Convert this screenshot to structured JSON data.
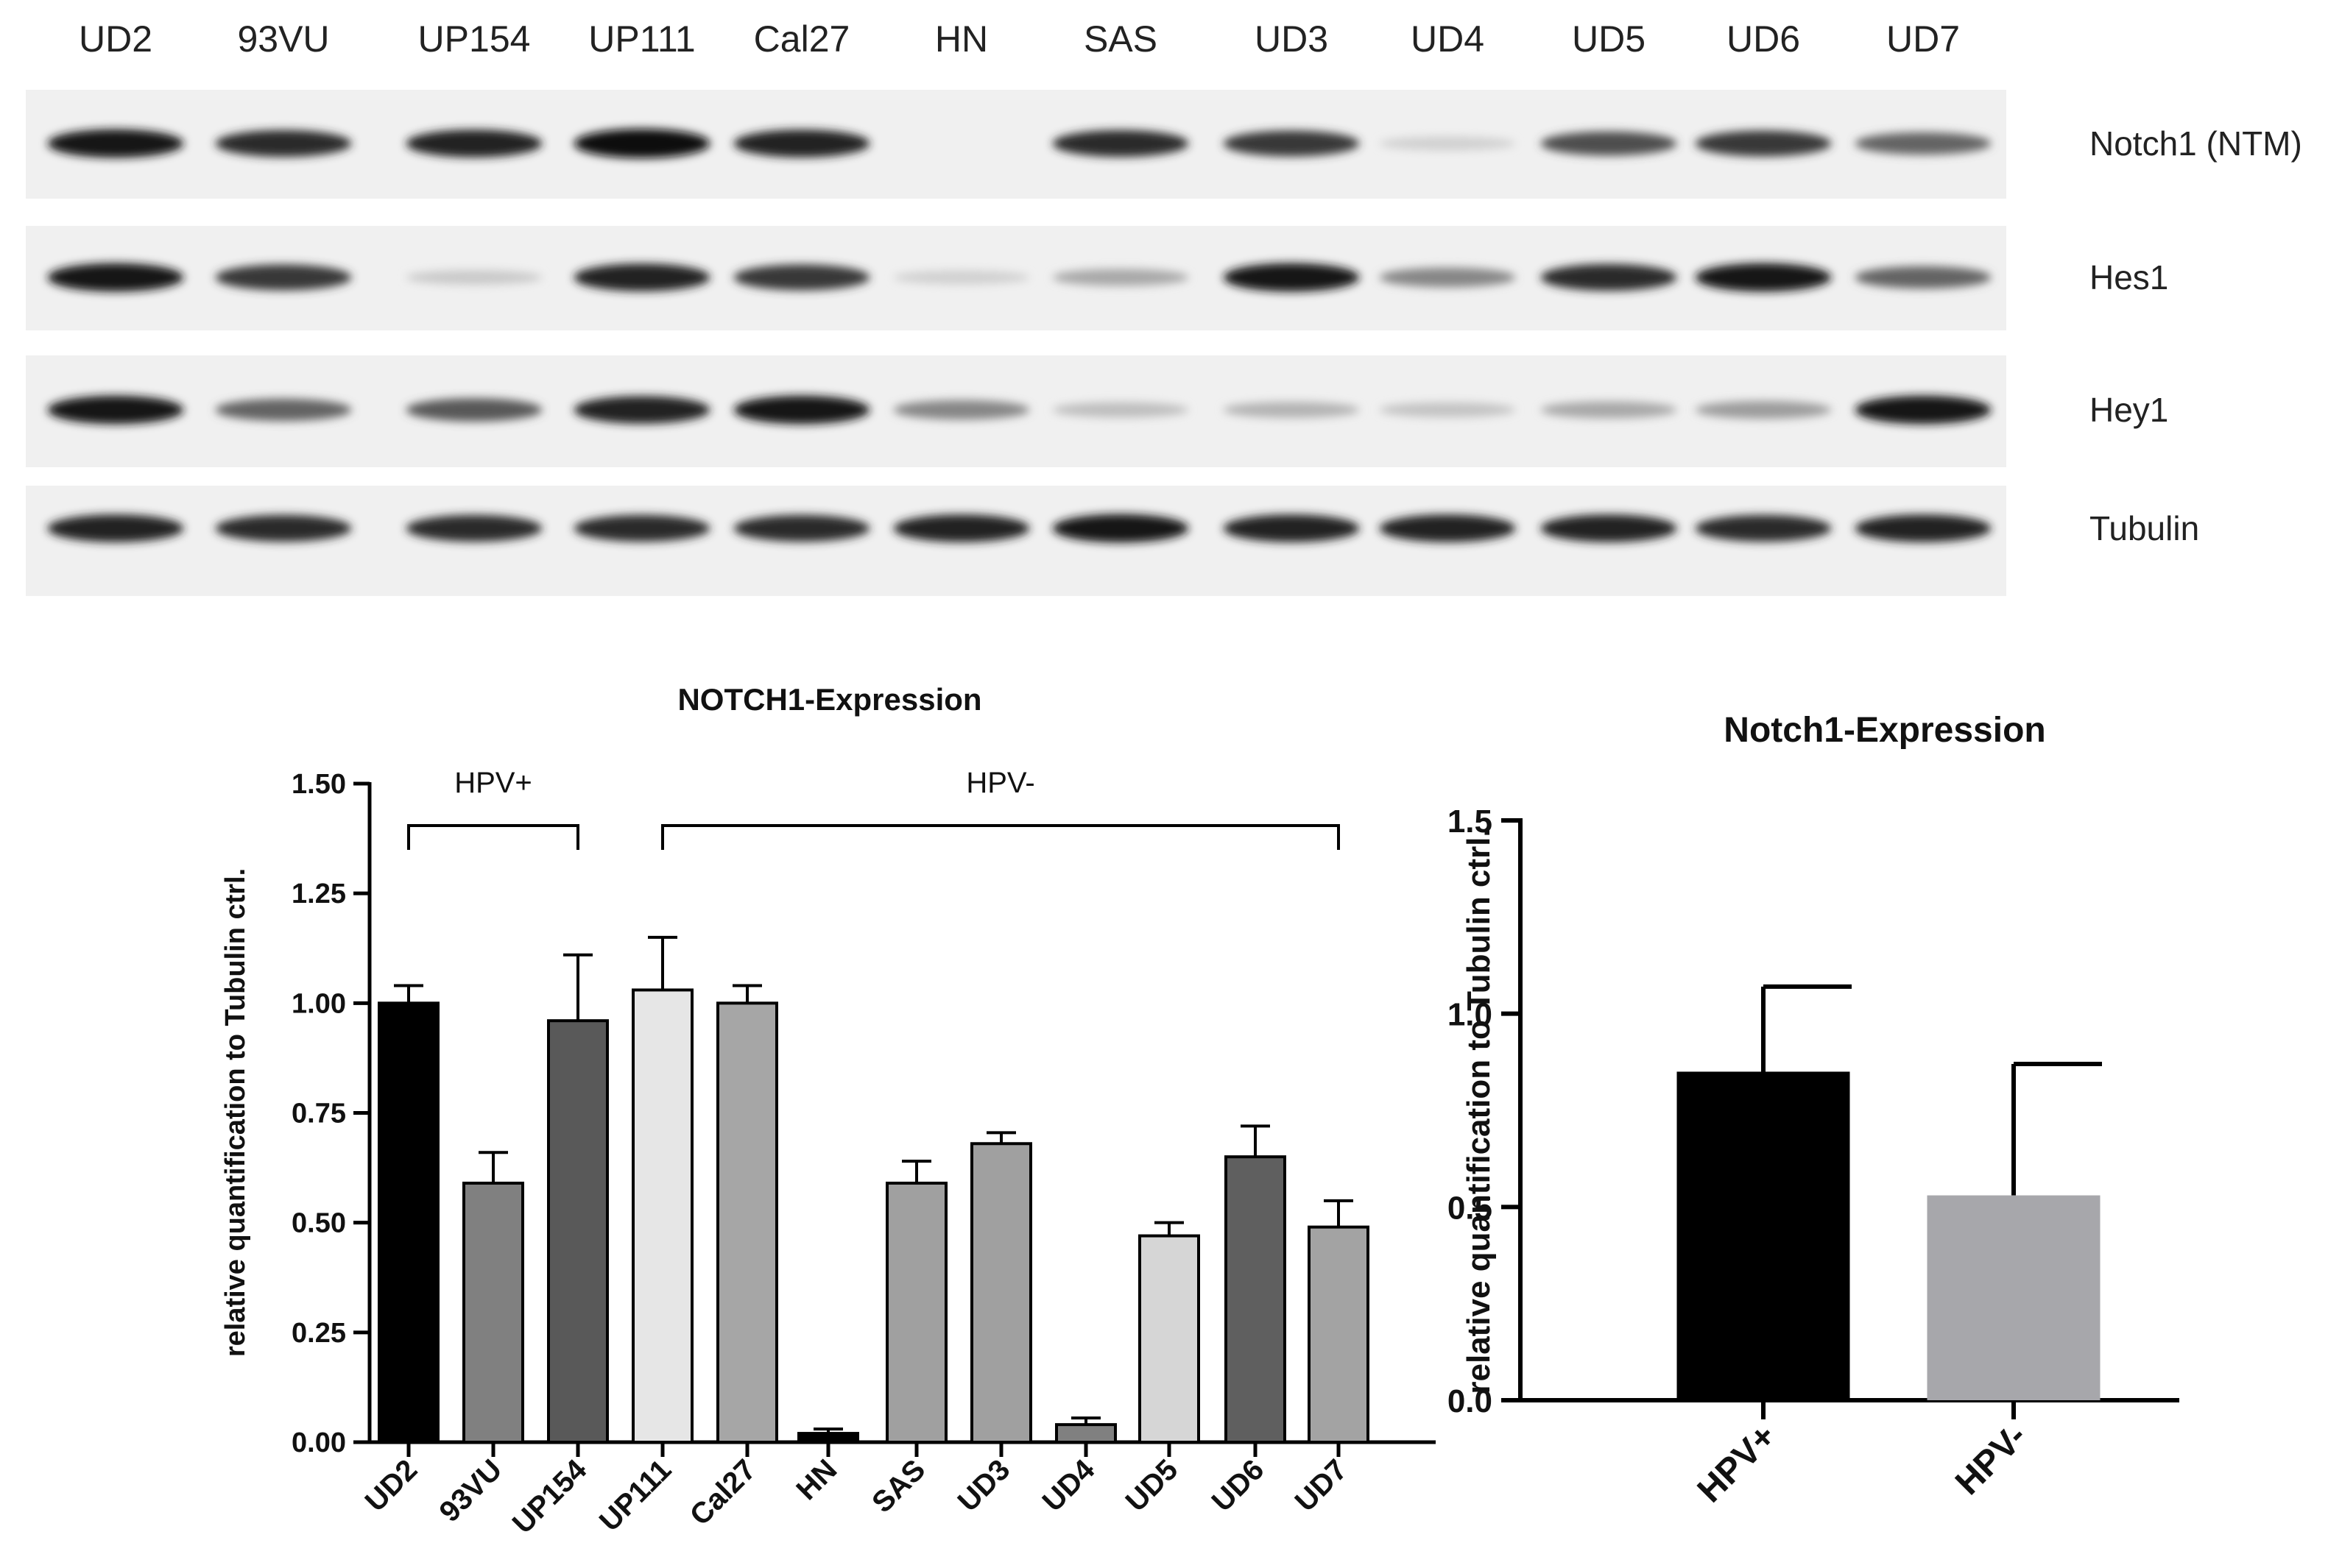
{
  "blot": {
    "lanes": [
      "UD2",
      "93VU",
      "UP154",
      "UP111",
      "Cal27",
      "HN",
      "SAS",
      "UD3",
      "UD4",
      "UD5",
      "UD6",
      "UD7"
    ],
    "rows": [
      {
        "label": "Notch1 (NTM)",
        "intensity": [
          0.95,
          0.85,
          0.9,
          1.0,
          0.9,
          0.0,
          0.85,
          0.8,
          0.12,
          0.7,
          0.8,
          0.6
        ]
      },
      {
        "label": "Hes1",
        "intensity": [
          0.95,
          0.8,
          0.15,
          0.9,
          0.8,
          0.12,
          0.3,
          0.95,
          0.45,
          0.85,
          0.95,
          0.6
        ]
      },
      {
        "label": "Hey1",
        "intensity": [
          0.95,
          0.6,
          0.65,
          0.9,
          0.95,
          0.45,
          0.2,
          0.25,
          0.18,
          0.3,
          0.35,
          0.95
        ]
      },
      {
        "label": "Tubulin",
        "intensity": [
          0.9,
          0.85,
          0.85,
          0.85,
          0.85,
          0.9,
          0.95,
          0.9,
          0.9,
          0.9,
          0.85,
          0.9
        ]
      }
    ]
  },
  "chart_data": [
    {
      "type": "bar",
      "title": "NOTCH1-Expression",
      "ylabel": "relative quantification to Tubulin ctrl.",
      "ylim": [
        0,
        1.5
      ],
      "yticks": [
        "0.00",
        "0.25",
        "0.50",
        "0.75",
        "1.00",
        "1.25",
        "1.50"
      ],
      "categories": [
        "UD2",
        "93VU",
        "UP154",
        "UP111",
        "Cal27",
        "HN",
        "SAS",
        "UD3",
        "UD4",
        "UD5",
        "UD6",
        "UD7"
      ],
      "values": [
        1.0,
        0.59,
        0.96,
        1.03,
        1.0,
        0.02,
        0.59,
        0.68,
        0.04,
        0.47,
        0.65,
        0.49
      ],
      "errors": [
        0.04,
        0.07,
        0.15,
        0.12,
        0.04,
        0.01,
        0.05,
        0.025,
        0.015,
        0.03,
        0.07,
        0.06
      ],
      "colors": [
        "#000000",
        "#808080",
        "#595959",
        "#e6e6e6",
        "#a6a6a6",
        "#000000",
        "#a0a0a0",
        "#a0a0a0",
        "#808080",
        "#d6d6d6",
        "#5f5f5f",
        "#a3a3a3"
      ],
      "groups": [
        {
          "label": "HPV+",
          "from": 0,
          "to": 2
        },
        {
          "label": "HPV-",
          "from": 3,
          "to": 11
        }
      ]
    },
    {
      "type": "bar",
      "title": "Notch1-Expression",
      "ylabel": "relative quantification to Tubulin ctrl.",
      "ylim": [
        0,
        1.5
      ],
      "yticks": [
        "0.0",
        "0.5",
        "1.0",
        "1.5"
      ],
      "categories": [
        "HPV+",
        "HPV-"
      ],
      "values": [
        0.85,
        0.53
      ],
      "errors": [
        0.22,
        0.34
      ],
      "colors": [
        "#000000",
        "#a7a7ab"
      ]
    }
  ]
}
